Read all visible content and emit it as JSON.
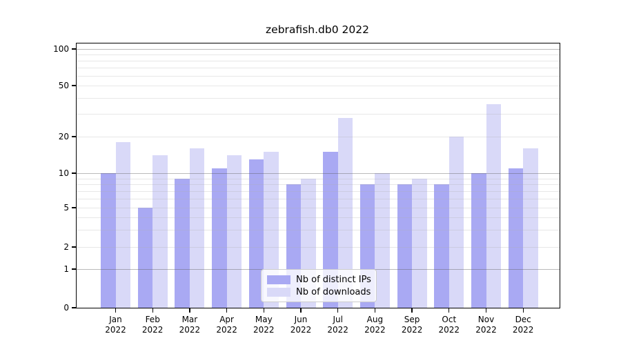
{
  "chart_data": {
    "type": "bar",
    "title": "zebrafish.db0 2022",
    "categories": [
      "Jan",
      "Feb",
      "Mar",
      "Apr",
      "May",
      "Jun",
      "Jul",
      "Aug",
      "Sep",
      "Oct",
      "Nov",
      "Dec"
    ],
    "year_suffix": "2022",
    "series": [
      {
        "name": "Nb of distinct IPs",
        "color": "#a9a9f3",
        "values": [
          10,
          5,
          9,
          11,
          13,
          8,
          15,
          8,
          8,
          8,
          10,
          11
        ]
      },
      {
        "name": "Nb of downloads",
        "color": "#d9d9f8",
        "values": [
          18,
          14,
          16,
          14,
          15,
          9,
          28,
          10,
          9,
          20,
          36,
          16
        ]
      }
    ],
    "xlabel": "",
    "ylabel": "",
    "yticks": [
      0,
      1,
      2,
      5,
      10,
      20,
      50,
      100
    ],
    "y_major_ticks": [
      1,
      10,
      100
    ],
    "y_minor_gridlines": [
      3,
      4,
      6,
      7,
      8,
      9,
      30,
      40,
      60,
      70,
      80,
      90
    ],
    "y_scale": "asinh",
    "ylim": [
      0,
      115
    ],
    "grid": "horizontal",
    "legend_position": "bottom-center"
  }
}
